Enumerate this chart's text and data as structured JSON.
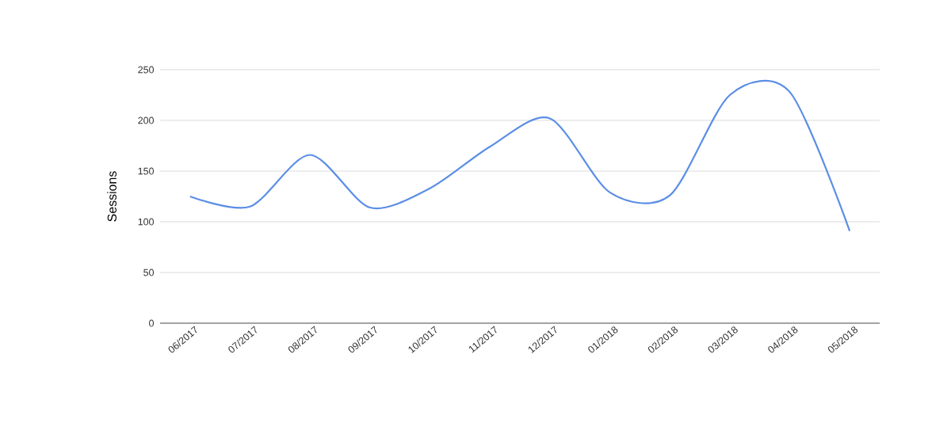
{
  "chart_data": {
    "type": "line",
    "ylabel": "Sessions",
    "categories": [
      "06/2017",
      "07/2017",
      "08/2017",
      "09/2017",
      "10/2017",
      "11/2017",
      "12/2017",
      "01/2018",
      "02/2018",
      "03/2018",
      "04/2018",
      "05/2018"
    ],
    "values": [
      125,
      115,
      166,
      114,
      133,
      174,
      202,
      129,
      126,
      225,
      228,
      91
    ],
    "color": "#5b8ee6",
    "ylim": [
      0,
      250
    ],
    "yticks": [
      0,
      50,
      100,
      150,
      200,
      250
    ],
    "grid": "y",
    "line_style": "solid",
    "marker": "none"
  }
}
